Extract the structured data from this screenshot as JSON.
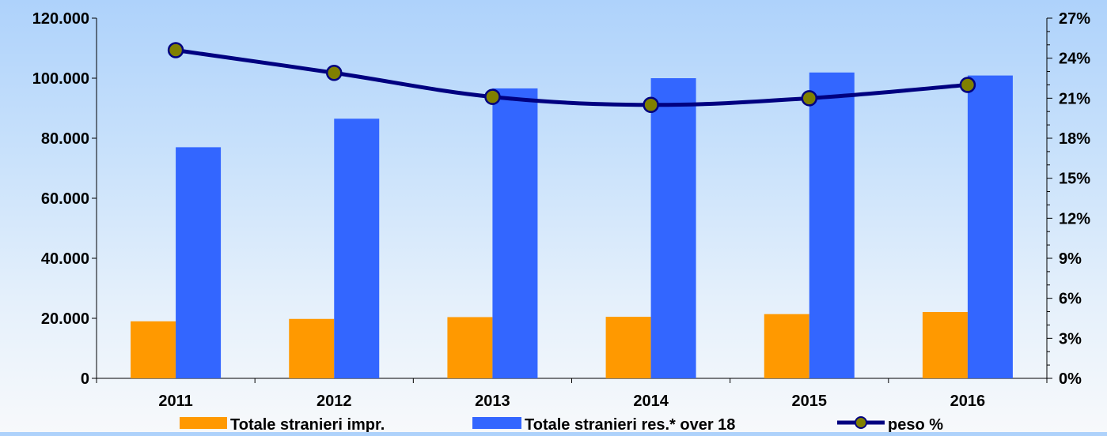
{
  "chart_data": {
    "type": "bar+line",
    "categories": [
      "2011",
      "2012",
      "2013",
      "2014",
      "2015",
      "2016"
    ],
    "series": [
      {
        "name": "Totale stranieri impr.",
        "kind": "bar",
        "axis": "left",
        "color": "#ff9900",
        "values": [
          19000,
          19800,
          20400,
          20500,
          21400,
          22100
        ]
      },
      {
        "name": "Totale stranieri res.* over 18",
        "kind": "bar",
        "axis": "left",
        "color": "#3366ff",
        "values": [
          77000,
          86500,
          96600,
          100000,
          101900,
          100900
        ]
      },
      {
        "name": "peso %",
        "kind": "line",
        "axis": "right",
        "color": "#000080",
        "marker_color": "#808000",
        "values": [
          24.6,
          22.9,
          21.1,
          20.5,
          21.0,
          22.0
        ]
      }
    ],
    "left_axis": {
      "ylim": [
        0,
        120000
      ],
      "ticks": [
        0,
        20000,
        40000,
        60000,
        80000,
        100000,
        120000
      ],
      "tick_labels": [
        "0",
        "20.000",
        "40.000",
        "60.000",
        "80.000",
        "100.000",
        "120.000"
      ]
    },
    "right_axis": {
      "ylim": [
        0,
        27
      ],
      "ticks": [
        0,
        3,
        6,
        9,
        12,
        15,
        18,
        21,
        24,
        27
      ],
      "tick_labels": [
        "0%",
        "3%",
        "6%",
        "9%",
        "12%",
        "15%",
        "18%",
        "21%",
        "24%",
        "27%"
      ]
    },
    "grid": false,
    "legend_position": "bottom"
  }
}
